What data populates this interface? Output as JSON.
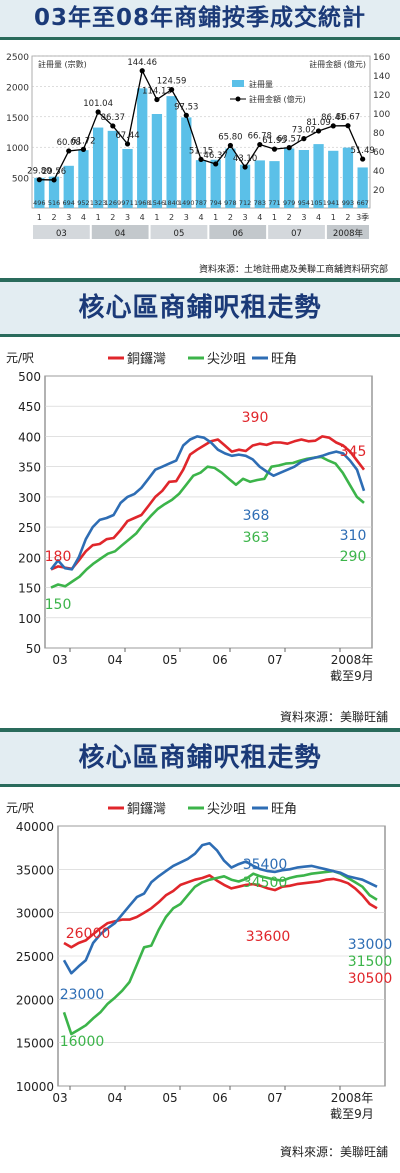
{
  "panel1": {
    "title": "03年至08年商鋪按季成交統計",
    "source": "資料來源：土地註冊處及美聯工商舖資料研究部"
  },
  "panel2": {
    "title": "核心區商鋪呎租走勢",
    "unit": "元/呎",
    "note": "截至9月",
    "source": "資料來源：美聯旺舖"
  },
  "panel3": {
    "title": "核心區商鋪呎租走勢",
    "unit": "元/呎",
    "note": "截至9月",
    "source": "資料來源：美聯旺舖"
  },
  "chart_data": [
    {
      "type": "bar",
      "title": "03年至08年商鋪按季成交統計",
      "ylabel": "註冊量 (宗數)",
      "y2label": "註冊金額 (億元)",
      "ylim": [
        0,
        2500
      ],
      "y2lim": [
        0,
        160
      ],
      "yticks": [
        500,
        1000,
        1500,
        2000,
        2500
      ],
      "y2ticks": [
        20,
        40,
        60,
        80,
        100,
        120,
        140,
        160
      ],
      "quarters": [
        "1",
        "2",
        "3",
        "4",
        "1",
        "2",
        "3",
        "4",
        "1",
        "2",
        "3",
        "4",
        "1",
        "2",
        "3",
        "4",
        "1",
        "2",
        "3",
        "4",
        "1",
        "2",
        "3季"
      ],
      "years": [
        "03",
        "04",
        "05",
        "06",
        "07",
        "2008年"
      ],
      "year_spans": [
        4,
        4,
        4,
        4,
        4,
        3
      ],
      "series": [
        {
          "name": "註冊量",
          "kind": "bar",
          "color": "#5bc0e8",
          "values": [
            496,
            516,
            694,
            952,
            1323,
            1269,
            971,
            1968,
            1546,
            1840,
            1490,
            787,
            794,
            978,
            712,
            783,
            771,
            979,
            954,
            1051,
            941,
            993,
            667
          ]
        },
        {
          "name": "註冊金額 (億元)",
          "kind": "line",
          "color": "#000000",
          "values": [
            29.8,
            29.56,
            60.08,
            61.72,
            101.04,
            86.37,
            67.44,
            144.46,
            114.13,
            124.59,
            97.53,
            51.15,
            46.37,
            65.8,
            43.1,
            66.78,
            61.95,
            63.57,
            73.02,
            81.09,
            86.41,
            86.67,
            51.49
          ],
          "labels": [
            "29.80",
            "29.56",
            "60.08",
            "61.72",
            "101.04",
            "86.37",
            "67.44",
            "144.46",
            "114.13",
            "124.59",
            "97.53",
            "51.15",
            "46.37",
            "65.80",
            "43.10",
            "66.78",
            "61.95",
            "63.57",
            "73.02",
            "81.09",
            "86.41",
            "86.67",
            "51.49"
          ]
        }
      ],
      "legend": [
        "註冊量",
        "註冊金額 (億元)"
      ]
    },
    {
      "type": "line",
      "title": "核心區商鋪呎租走勢",
      "ylabel": "元/呎",
      "ylim": [
        50,
        500
      ],
      "yticks": [
        50,
        100,
        150,
        200,
        250,
        300,
        350,
        400,
        450,
        500
      ],
      "xticks": [
        "03",
        "04",
        "05",
        "06",
        "07",
        "2008年"
      ],
      "xnote": "截至9月",
      "legend": [
        "銅鑼灣",
        "尖沙咀",
        "旺角"
      ],
      "series": [
        {
          "name": "銅鑼灣",
          "color": "#e0262b",
          "values": [
            180,
            185,
            183,
            181,
            195,
            210,
            220,
            222,
            230,
            232,
            245,
            260,
            265,
            270,
            285,
            300,
            310,
            325,
            326,
            345,
            370,
            378,
            385,
            392,
            395,
            385,
            375,
            378,
            376,
            385,
            388,
            386,
            390,
            390,
            388,
            392,
            395,
            392,
            393,
            400,
            398,
            390,
            385,
            375,
            360,
            345
          ]
        },
        {
          "name": "尖沙咀",
          "color": "#3cb44a",
          "values": [
            150,
            155,
            152,
            160,
            168,
            180,
            190,
            198,
            206,
            210,
            220,
            230,
            240,
            255,
            268,
            280,
            288,
            295,
            305,
            320,
            335,
            340,
            350,
            348,
            340,
            330,
            320,
            330,
            325,
            328,
            330,
            350,
            352,
            355,
            356,
            360,
            363,
            365,
            366,
            360,
            355,
            340,
            320,
            300,
            290
          ]
        },
        {
          "name": "旺角",
          "color": "#2e6db4",
          "values": [
            180,
            195,
            182,
            180,
            200,
            230,
            250,
            262,
            265,
            270,
            290,
            300,
            305,
            315,
            330,
            345,
            350,
            355,
            360,
            385,
            395,
            400,
            398,
            390,
            378,
            372,
            368,
            370,
            368,
            362,
            350,
            342,
            335,
            340,
            345,
            350,
            358,
            362,
            365,
            368,
            372,
            375,
            372,
            360,
            345,
            310
          ]
        }
      ],
      "annotations": [
        {
          "text": "180",
          "series": "銅鑼灣"
        },
        {
          "text": "150",
          "series": "尖沙咀"
        },
        {
          "text": "390",
          "series": "銅鑼灣"
        },
        {
          "text": "368",
          "series": "旺角"
        },
        {
          "text": "363",
          "series": "尖沙咀"
        },
        {
          "text": "345",
          "series": "銅鑼灣"
        },
        {
          "text": "310",
          "series": "旺角"
        },
        {
          "text": "290",
          "series": "尖沙咀"
        }
      ]
    },
    {
      "type": "line",
      "title": "核心區商鋪呎租走勢",
      "ylabel": "元/呎",
      "ylim": [
        10000,
        40000
      ],
      "yticks": [
        10000,
        15000,
        20000,
        25000,
        30000,
        35000,
        40000
      ],
      "xticks": [
        "03",
        "04",
        "05",
        "06",
        "07",
        "2008年"
      ],
      "xnote": "截至9月",
      "legend": [
        "銅鑼灣",
        "尖沙咀",
        "旺角"
      ],
      "series": [
        {
          "name": "銅鑼灣",
          "color": "#e0262b",
          "values": [
            26500,
            26000,
            26500,
            26800,
            27500,
            28200,
            28800,
            29000,
            29200,
            29200,
            29500,
            30000,
            30500,
            31200,
            32000,
            32500,
            33200,
            33500,
            33800,
            34000,
            34300,
            33700,
            33200,
            32800,
            33000,
            33200,
            33300,
            33100,
            32800,
            32600,
            33000,
            33100,
            33300,
            33400,
            33500,
            33600,
            33800,
            33900,
            33700,
            33400,
            32800,
            32000,
            31000,
            30500
          ]
        },
        {
          "name": "尖沙咀",
          "color": "#3cb44a",
          "values": [
            18500,
            16000,
            16500,
            17000,
            17800,
            18500,
            19500,
            20200,
            21000,
            22000,
            24000,
            26000,
            26200,
            28000,
            29500,
            30500,
            31000,
            32000,
            33000,
            33500,
            33800,
            34000,
            34200,
            33800,
            33600,
            33900,
            34500,
            34200,
            34000,
            33800,
            33700,
            34000,
            34200,
            34300,
            34500,
            34600,
            34700,
            34800,
            34500,
            34000,
            33500,
            33000,
            32000,
            31500
          ]
        },
        {
          "name": "旺角",
          "color": "#2e6db4",
          "values": [
            24500,
            23000,
            23800,
            24500,
            26500,
            27500,
            28200,
            28800,
            29800,
            30800,
            31800,
            32200,
            33500,
            34200,
            34800,
            35400,
            35800,
            36200,
            36800,
            37800,
            38000,
            37200,
            36000,
            35200,
            35600,
            35900,
            35400,
            35000,
            34800,
            34700,
            34900,
            35000,
            35200,
            35300,
            35400,
            35200,
            35000,
            34800,
            34600,
            34200,
            34000,
            33800,
            33400,
            33000
          ]
        }
      ],
      "annotations": [
        {
          "text": "26000",
          "series": "銅鑼灣"
        },
        {
          "text": "23000",
          "series": "旺角"
        },
        {
          "text": "16000",
          "series": "尖沙咀"
        },
        {
          "text": "35400",
          "series": "旺角"
        },
        {
          "text": "34500",
          "series": "尖沙咀"
        },
        {
          "text": "33600",
          "series": "銅鑼灣"
        },
        {
          "text": "33000",
          "series": "旺角"
        },
        {
          "text": "31500",
          "series": "尖沙咀"
        },
        {
          "text": "30500",
          "series": "銅鑼灣"
        }
      ]
    }
  ]
}
